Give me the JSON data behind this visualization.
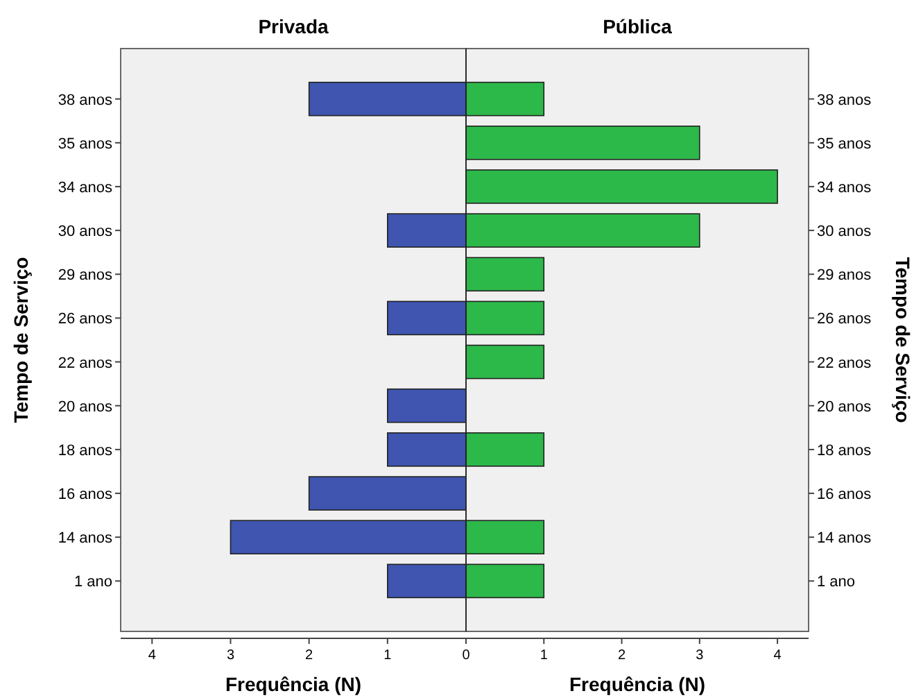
{
  "chart_data": [
    {
      "type": "bar",
      "orientation": "horizontal",
      "title": "Privada",
      "xlabel": "Frequência (N)",
      "ylabel": "Tempo de Serviço",
      "categories": [
        "38 anos",
        "35 anos",
        "34 anos",
        "30 anos",
        "29 anos",
        "26 anos",
        "22 anos",
        "20 anos",
        "18 anos",
        "16 anos",
        "14 anos",
        "1 ano"
      ],
      "values": [
        2,
        null,
        null,
        1,
        null,
        1,
        null,
        1,
        1,
        2,
        3,
        1
      ],
      "color": "#3f55b0",
      "xlim": [
        4.4,
        0
      ],
      "xticks": [
        4,
        3,
        2,
        1,
        {
          "value": 0,
          "label": null
        }
      ]
    },
    {
      "type": "bar",
      "orientation": "horizontal",
      "title": "Pública",
      "xlabel": "Frequência (N)",
      "ylabel": "Tempo de Serviço",
      "categories": [
        "38 anos",
        "35 anos",
        "34 anos",
        "30 anos",
        "29 anos",
        "26 anos",
        "22 anos",
        "20 anos",
        "18 anos",
        "16 anos",
        "14 anos",
        "1 ano"
      ],
      "values": [
        1,
        3,
        4,
        3,
        1,
        1,
        1,
        null,
        1,
        null,
        1,
        1
      ],
      "color": "#2db84a",
      "xlim": [
        0,
        4.4
      ],
      "xticks": [
        0,
        1,
        2,
        3,
        4
      ]
    }
  ]
}
